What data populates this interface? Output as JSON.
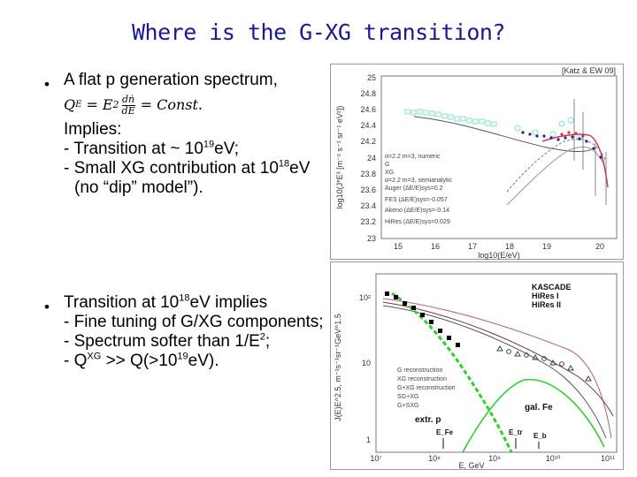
{
  "title": "Where is the G-XG transition?",
  "bullet_char": "•",
  "block1": {
    "line1": "A  flat p generation spectrum,",
    "formula_lhs": "Q",
    "formula_lhs_sub": "E",
    "formula_eq": "=",
    "formula_E": "E",
    "formula_pow": "2",
    "frac_num": "dṅ",
    "frac_den": "dE",
    "formula_rhs": "= Const.",
    "implies": "Implies:",
    "l1a": "- Transition at ~ 10",
    "l1a_sup": "19",
    "l1a_end": "eV;",
    "l2a": "- Small XG contribution at 10",
    "l2a_sup": "18",
    "l2a_end": "eV",
    "l3": "  (no “dip” model”)."
  },
  "block2": {
    "l1a": "Transition at 10",
    "l1a_sup": "18",
    "l1a_end": "eV implies",
    "l2": "- Fine tuning of G/XG components;",
    "l3": "- Spectrum softer than 1/E",
    "l3_sup": "2",
    "l3_end": ";",
    "l4a": "- Q",
    "l4a_sup": "XG",
    "l4b": " >> Q(>10",
    "l4b_sup": "19",
    "l4b_end": "eV)."
  },
  "top_chart": {
    "ref": "[Katz & EW 09]",
    "xlabel": "log10(E/eV)",
    "ylabel": "log10(J*E³ [m⁻² s⁻¹ sr⁻¹ eV²])",
    "xticks": [
      "15",
      "16",
      "17",
      "18",
      "19",
      "20"
    ],
    "yticks": [
      "25",
      "24.8",
      "24.6",
      "24.4",
      "24.2",
      "24",
      "23.8",
      "23.6",
      "23.4",
      "23.2",
      "23"
    ],
    "legend": [
      "α=2.2 m=3, numeric",
      "G",
      "XG",
      "α=2.2 m=3, semianalytic",
      "Auger (ΔE/E)sys=0.2",
      "FES (ΔE/E)sys=-0.057",
      "Akeno (ΔE/E)sys=-0.14",
      "HiRes (ΔE/E)sys=0.029"
    ]
  },
  "bottom_chart": {
    "legend_right": [
      "KASCADE",
      "HiRes I",
      "HiRes II"
    ],
    "legend_left": [
      "G reconstruction",
      "XG reconstruction",
      "G+XG reconstruction",
      "SG+XG",
      "G+SXG"
    ],
    "yticks": [
      "10²",
      "10",
      "1"
    ],
    "xticks": [
      "10⁷",
      "10⁸",
      "10⁹",
      "10¹⁰",
      "10¹¹"
    ],
    "xlabel": "E, GeV",
    "ylabel": "J(E)E^2.5, m⁻²s⁻¹sr⁻¹GeV^1.5",
    "label_p": "extr. p",
    "label_fe": "gal. Fe",
    "label_efe": "E_Fe",
    "label_etr": "E_tr",
    "label_eb": "E_b"
  },
  "colors": {
    "title": "#1a1a8c",
    "green": "#33cc33",
    "cyan_marker": "#88ddcc",
    "blue_points": "#222299",
    "red_curve": "#cc3344"
  }
}
